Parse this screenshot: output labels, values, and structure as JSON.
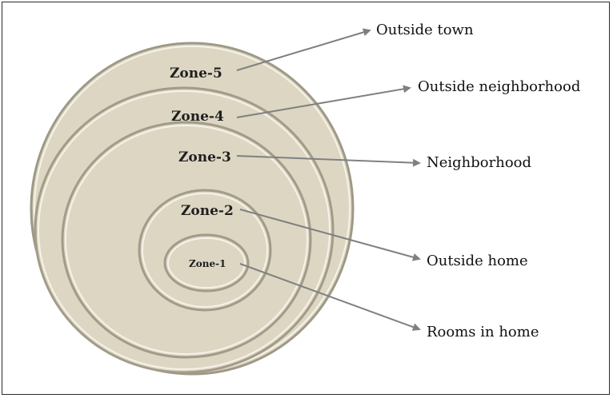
{
  "diagram": {
    "zones": [
      {
        "label": "Zone-5",
        "description": "Outside town"
      },
      {
        "label": "Zone-4",
        "description": "Outside neighborhood"
      },
      {
        "label": "Zone-3",
        "description": "Neighborhood"
      },
      {
        "label": "Zone-2",
        "description": "Outside home"
      },
      {
        "label": "Zone-1",
        "description": "Rooms in home"
      }
    ],
    "colors": {
      "ring_fill": "#dcd6c3",
      "ring_rim_light": "#f5f2e8",
      "ring_rim_dark": "#9e9986",
      "arrow": "#808080"
    }
  }
}
